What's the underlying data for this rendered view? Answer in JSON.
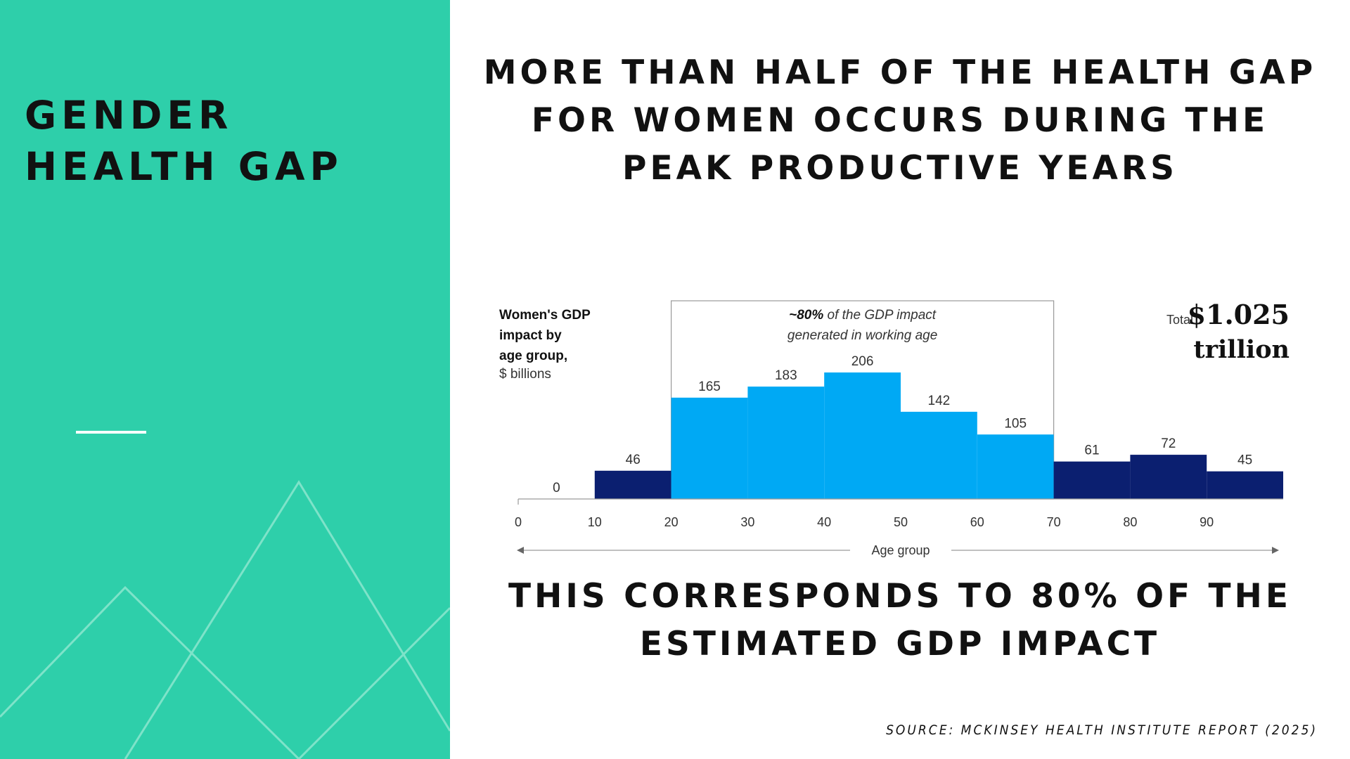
{
  "colors": {
    "left_panel_bg": "#2ecfaa",
    "bar_working_age": "#00a9f4",
    "bar_other_ages": "#0b1f70",
    "text": "#111111"
  },
  "left_panel": {
    "title_lines": [
      "GENDER",
      "HEALTH GAP"
    ]
  },
  "headline": {
    "lines": [
      "MORE THAN HALF OF THE HEALTH GAP",
      "FOR WOMEN OCCURS DURING THE",
      "PEAK PRODUCTIVE YEARS"
    ]
  },
  "subheadline": {
    "lines": [
      "THIS CORRESPONDS TO 80% OF THE",
      "ESTIMATED GDP IMPACT"
    ]
  },
  "source": "SOURCE: MCKINSEY HEALTH INSTITUTE REPORT (2025)",
  "chart_data": {
    "type": "bar",
    "title_lines": [
      "Women's GDP",
      "impact by",
      "age group,"
    ],
    "unit": "$ billions",
    "xlabel": "Age group",
    "x_ticks": [
      0,
      10,
      20,
      30,
      40,
      50,
      60,
      70,
      80,
      90
    ],
    "bins": [
      {
        "start": 0,
        "end": 10,
        "value": 0,
        "highlight": false
      },
      {
        "start": 10,
        "end": 20,
        "value": 46,
        "highlight": false
      },
      {
        "start": 20,
        "end": 30,
        "value": 165,
        "highlight": true
      },
      {
        "start": 30,
        "end": 40,
        "value": 183,
        "highlight": true
      },
      {
        "start": 40,
        "end": 50,
        "value": 206,
        "highlight": true
      },
      {
        "start": 50,
        "end": 60,
        "value": 142,
        "highlight": true
      },
      {
        "start": 60,
        "end": 70,
        "value": 105,
        "highlight": true
      },
      {
        "start": 70,
        "end": 80,
        "value": 61,
        "highlight": false
      },
      {
        "start": 80,
        "end": 90,
        "value": 72,
        "highlight": false
      },
      {
        "start": 90,
        "end": 100,
        "value": 45,
        "highlight": false
      }
    ],
    "annotation": {
      "bold": "~80%",
      "line1_rest": " of the GDP impact",
      "line2": "generated in working age",
      "range": [
        20,
        70
      ]
    },
    "total": {
      "label": "Total",
      "value_line1": "$1.025",
      "value_line2": "trillion"
    },
    "xlim": [
      0,
      100
    ],
    "ylim": [
      0,
      206
    ]
  }
}
